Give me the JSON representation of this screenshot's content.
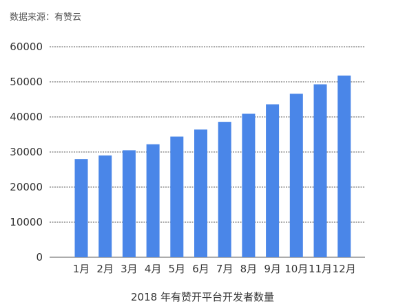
{
  "source_note": "数据来源：有赞云",
  "chart_data": {
    "type": "bar",
    "title": "2018 年有赞开平台开发者数量",
    "xlabel": "",
    "ylabel": "",
    "categories": [
      "1月",
      "2月",
      "3月",
      "4月",
      "5月",
      "6月",
      "7月",
      "8月",
      "9月",
      "10月",
      "11月",
      "12月"
    ],
    "values": [
      28000,
      29000,
      30500,
      32200,
      34400,
      36400,
      38600,
      40900,
      43600,
      46600,
      49300,
      51800
    ],
    "ylim": [
      0,
      60000
    ],
    "yticks": [
      0,
      10000,
      20000,
      30000,
      40000,
      50000,
      60000
    ],
    "grid": true,
    "legend": "none",
    "bar_color": "#4a86e8",
    "grid_color": "#222222"
  }
}
